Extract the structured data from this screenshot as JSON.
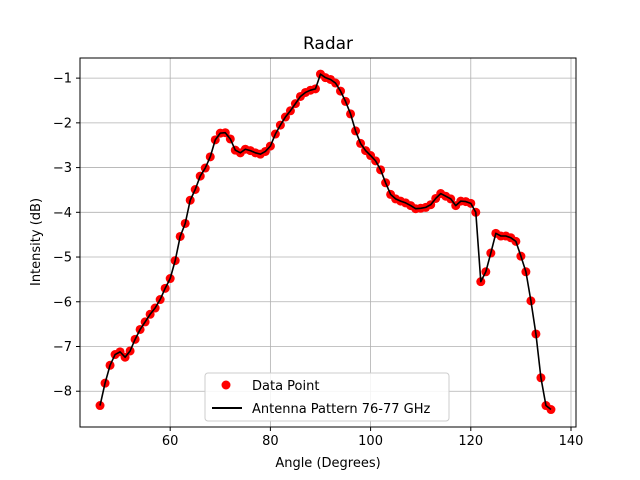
{
  "chart_data": {
    "type": "line",
    "title": "Radar",
    "xlabel": "Angle (Degrees)",
    "ylabel": "Intensity (dB)",
    "xlim": [
      42,
      141
    ],
    "ylim": [
      -8.8,
      -0.55
    ],
    "xticks": [
      60,
      80,
      100,
      120,
      140
    ],
    "xtick_labels": [
      "60",
      "80",
      "100",
      "120",
      "140"
    ],
    "yticks": [
      -8,
      -7,
      -6,
      -5,
      -4,
      -3,
      -2,
      -1
    ],
    "ytick_labels": [
      "−8",
      "−7",
      "−6",
      "−5",
      "−4",
      "−3",
      "−2",
      "−1"
    ],
    "grid": true,
    "legend": {
      "placement": "bottom-center",
      "entries": [
        {
          "label": "Data Point",
          "marker": "circle",
          "color": "#ff0000"
        },
        {
          "label": "Antenna Pattern 76-77 GHz",
          "marker": "line",
          "color": "#000000"
        }
      ]
    },
    "series": [
      {
        "name": "Antenna Pattern 76-77 GHz",
        "color": "#000000",
        "marker_color": "#ff0000",
        "x": [
          46,
          47,
          48,
          49,
          50,
          51,
          52,
          53,
          54,
          55,
          56,
          57,
          58,
          59,
          60,
          61,
          62,
          63,
          64,
          65,
          66,
          67,
          68,
          69,
          70,
          71,
          72,
          73,
          74,
          75,
          76,
          77,
          78,
          79,
          80,
          81,
          82,
          83,
          84,
          85,
          86,
          87,
          88,
          89,
          90,
          91,
          92,
          93,
          94,
          95,
          96,
          97,
          98,
          99,
          100,
          101,
          102,
          103,
          104,
          105,
          106,
          107,
          108,
          109,
          110,
          111,
          112,
          113,
          114,
          115,
          116,
          117,
          118,
          119,
          120,
          121,
          122,
          123,
          124,
          125,
          126,
          127,
          128,
          129,
          130,
          131,
          132,
          133,
          134,
          135,
          136
        ],
        "y": [
          -8.32,
          -7.82,
          -7.42,
          -7.18,
          -7.12,
          -7.24,
          -7.1,
          -6.84,
          -6.62,
          -6.45,
          -6.28,
          -6.14,
          -5.95,
          -5.7,
          -5.48,
          -5.08,
          -4.54,
          -4.25,
          -3.73,
          -3.49,
          -3.19,
          -3.01,
          -2.76,
          -2.38,
          -2.23,
          -2.22,
          -2.36,
          -2.61,
          -2.67,
          -2.59,
          -2.62,
          -2.67,
          -2.7,
          -2.64,
          -2.52,
          -2.25,
          -2.05,
          -1.87,
          -1.73,
          -1.57,
          -1.41,
          -1.32,
          -1.27,
          -1.24,
          -0.91,
          -0.99,
          -1.03,
          -1.11,
          -1.29,
          -1.52,
          -1.8,
          -2.18,
          -2.46,
          -2.62,
          -2.73,
          -2.85,
          -3.05,
          -3.34,
          -3.6,
          -3.7,
          -3.75,
          -3.79,
          -3.85,
          -3.92,
          -3.91,
          -3.89,
          -3.83,
          -3.69,
          -3.58,
          -3.64,
          -3.7,
          -3.85,
          -3.75,
          -3.76,
          -3.8,
          -4.0,
          -5.55,
          -5.33,
          -4.91,
          -4.47,
          -4.53,
          -4.53,
          -4.57,
          -4.65,
          -4.98,
          -5.33,
          -5.98,
          -6.72,
          -7.7,
          -8.32,
          -8.41
        ]
      }
    ]
  }
}
